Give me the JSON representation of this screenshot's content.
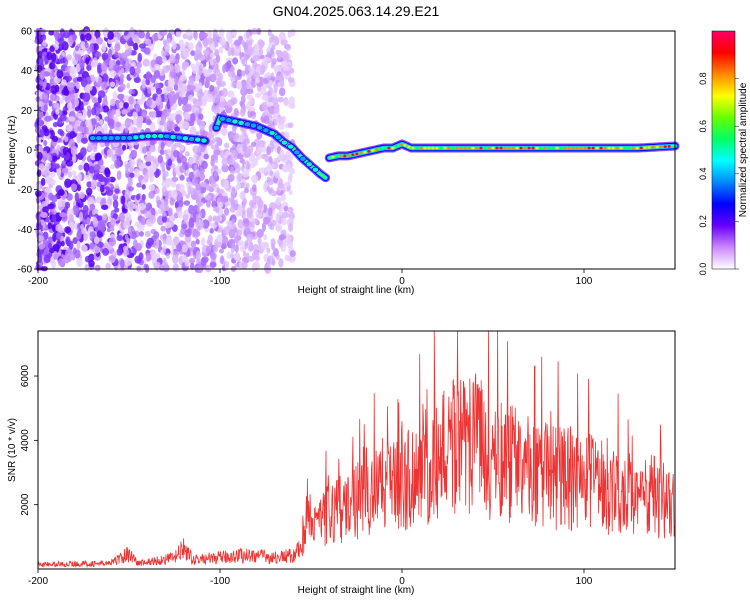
{
  "figure_title": "GN04.2025.063.14.29.E21",
  "colors": {
    "snr_line": "#ee3333",
    "axis": "#000000",
    "colormap": [
      "#ffffff",
      "#cc88ff",
      "#6600ff",
      "#0000ff",
      "#0088ff",
      "#00ffff",
      "#00ff66",
      "#66ff00",
      "#ffff00",
      "#ff8800",
      "#ff0000",
      "#ff0066"
    ]
  },
  "chart_data": [
    {
      "type": "heatmap",
      "xlabel": "Height of straight line (km)",
      "ylabel": "Frequency (Hz)",
      "xlim": [
        -200,
        150
      ],
      "ylim": [
        -60,
        60
      ],
      "x_ticks": [
        -200,
        -100,
        0,
        100
      ],
      "y_ticks": [
        -60,
        -40,
        -20,
        0,
        20,
        40,
        60
      ],
      "colorbar": {
        "label": "Normalized spectral amplitude",
        "range": [
          0,
          1
        ],
        "ticks": [
          "0.0",
          "0.2",
          "0.4",
          "0.6",
          "0.8"
        ]
      },
      "ridge": {
        "x": [
          -170,
          -160,
          -150,
          -140,
          -130,
          -120,
          -110,
          -105,
          -100,
          -95,
          -90,
          -80,
          -70,
          -65,
          -60,
          -55,
          -50,
          -45,
          -42,
          -40,
          -35,
          -30,
          -25,
          -20,
          -15,
          -10,
          -5,
          0,
          5,
          20,
          50,
          80,
          110,
          130,
          150
        ],
        "y": [
          6,
          6,
          6,
          7,
          7,
          6,
          5,
          4,
          16,
          15,
          14,
          12,
          8,
          4,
          1,
          -4,
          -8,
          -12,
          -14,
          -4,
          -3,
          -3,
          -2,
          -1,
          0,
          1,
          1,
          3,
          1,
          1,
          1,
          1,
          1,
          1,
          2
        ]
      },
      "noise_region": [
        -200,
        -70
      ]
    },
    {
      "type": "line",
      "xlabel": "Height of straight line (km)",
      "ylabel": "SNR (10 * v/v)",
      "xlim": [
        -200,
        150
      ],
      "ylim": [
        0,
        7400
      ],
      "x_ticks": [
        -200,
        -100,
        0,
        100
      ],
      "y_ticks": [
        2000,
        4000,
        6000
      ],
      "series": [
        {
          "envelope_x": [
            -200,
            -160,
            -150,
            -145,
            -140,
            -125,
            -120,
            -115,
            -100,
            -90,
            -80,
            -70,
            -60,
            -55,
            -50,
            -45,
            -40,
            -30,
            -20,
            -10,
            0,
            10,
            20,
            30,
            35,
            40,
            50,
            60,
            70,
            80,
            90,
            100,
            110,
            120,
            130,
            140,
            150
          ],
          "envelope_y": [
            200,
            250,
            700,
            250,
            300,
            500,
            900,
            400,
            500,
            600,
            600,
            500,
            600,
            900,
            2000,
            1800,
            2200,
            2300,
            2800,
            3200,
            3400,
            3600,
            4200,
            4700,
            4800,
            4600,
            4300,
            4000,
            3700,
            3500,
            3400,
            3300,
            3100,
            2900,
            2800,
            2700,
            2600
          ]
        }
      ]
    }
  ]
}
